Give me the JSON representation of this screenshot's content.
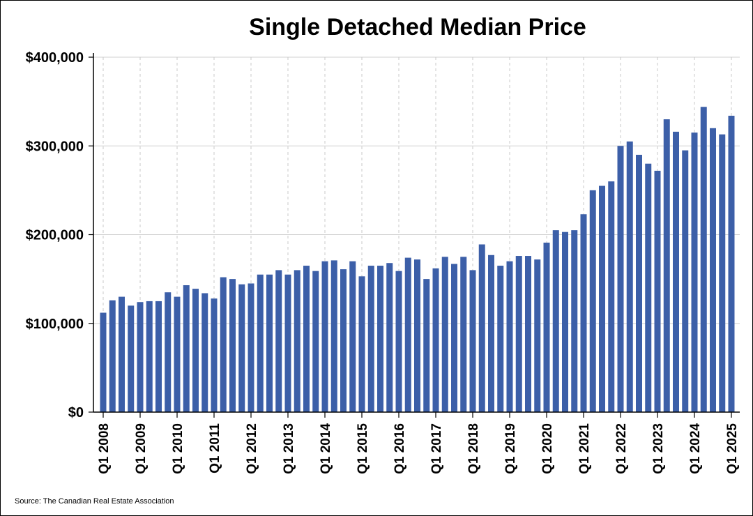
{
  "chart_data": {
    "type": "bar",
    "title": "Single Detached Median Price",
    "xlabel": "",
    "ylabel": "",
    "ylim": [
      0,
      400000
    ],
    "grid": true,
    "bar_color": "#3c5fa8",
    "y_ticks": [
      0,
      100000,
      200000,
      300000,
      400000
    ],
    "y_tick_labels": [
      "$0",
      "$100,000",
      "$200,000",
      "$300,000",
      "$400,000"
    ],
    "x_tick_labels": [
      "Q1 2008",
      "Q1 2009",
      "Q1 2010",
      "Q1 2011",
      "Q1 2012",
      "Q1 2013",
      "Q1 2014",
      "Q1 2015",
      "Q1 2016",
      "Q1 2017",
      "Q1 2018",
      "Q1 2019",
      "Q1 2020",
      "Q1 2021",
      "Q1 2022",
      "Q1 2023",
      "Q1 2024",
      "Q1 2025"
    ],
    "categories": [
      "Q1 2008",
      "Q2 2008",
      "Q3 2008",
      "Q4 2008",
      "Q1 2009",
      "Q2 2009",
      "Q3 2009",
      "Q4 2009",
      "Q1 2010",
      "Q2 2010",
      "Q3 2010",
      "Q4 2010",
      "Q1 2011",
      "Q2 2011",
      "Q3 2011",
      "Q4 2011",
      "Q1 2012",
      "Q2 2012",
      "Q3 2012",
      "Q4 2012",
      "Q1 2013",
      "Q2 2013",
      "Q3 2013",
      "Q4 2013",
      "Q1 2014",
      "Q2 2014",
      "Q3 2014",
      "Q4 2014",
      "Q1 2015",
      "Q2 2015",
      "Q3 2015",
      "Q4 2015",
      "Q1 2016",
      "Q2 2016",
      "Q3 2016",
      "Q4 2016",
      "Q1 2017",
      "Q2 2017",
      "Q3 2017",
      "Q4 2017",
      "Q1 2018",
      "Q2 2018",
      "Q3 2018",
      "Q4 2018",
      "Q1 2019",
      "Q2 2019",
      "Q3 2019",
      "Q4 2019",
      "Q1 2020",
      "Q2 2020",
      "Q3 2020",
      "Q4 2020",
      "Q1 2021",
      "Q2 2021",
      "Q3 2021",
      "Q4 2021",
      "Q1 2022",
      "Q2 2022",
      "Q3 2022",
      "Q4 2022",
      "Q1 2023",
      "Q2 2023",
      "Q3 2023",
      "Q4 2023",
      "Q1 2024",
      "Q2 2024",
      "Q3 2024",
      "Q4 2024",
      "Q1 2025"
    ],
    "values": [
      112000,
      126000,
      130000,
      120000,
      124000,
      125000,
      125000,
      135000,
      130000,
      143000,
      139000,
      134000,
      128000,
      152000,
      150000,
      144000,
      145000,
      155000,
      155000,
      160000,
      155000,
      160000,
      165000,
      159000,
      170000,
      171000,
      161000,
      170000,
      153000,
      165000,
      165000,
      168000,
      159000,
      174000,
      172000,
      150000,
      162000,
      175000,
      167000,
      175000,
      160000,
      189000,
      177000,
      165000,
      170000,
      176000,
      176000,
      172000,
      191000,
      205000,
      203000,
      205000,
      223000,
      250000,
      255000,
      260000,
      300000,
      305000,
      290000,
      280000,
      272000,
      330000,
      316000,
      295000,
      315000,
      344000,
      320000,
      313000,
      334000
    ]
  },
  "footer": {
    "source": "Source: The Canadian Real Estate Association"
  }
}
